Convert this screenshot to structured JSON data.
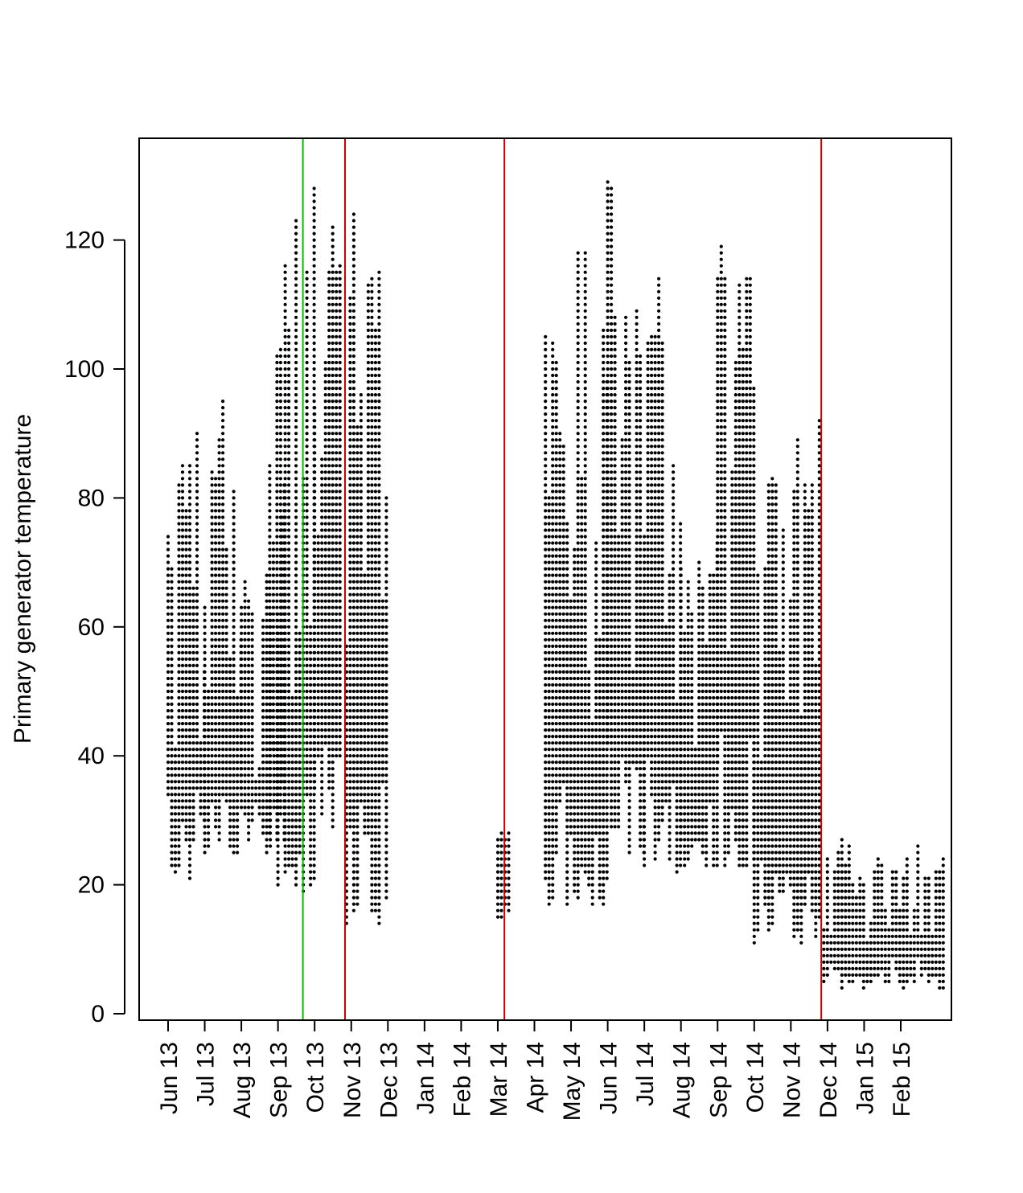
{
  "chart_data": {
    "type": "scatter",
    "title": "",
    "xlabel": "",
    "ylabel": "Primary generator temperature",
    "ylim": [
      0,
      136
    ],
    "y_ticks": [
      0,
      20,
      40,
      60,
      80,
      100,
      120
    ],
    "x_tick_labels": [
      "Jun 13",
      "Jul 13",
      "Aug 13",
      "Sep 13",
      "Oct 13",
      "Nov 13",
      "Dec 13",
      "Jan 14",
      "Feb 14",
      "Mar 14",
      "Apr 14",
      "May 14",
      "Jun 14",
      "Jul 14",
      "Aug 14",
      "Sep 14",
      "Oct 14",
      "Nov 14",
      "Dec 14",
      "Jan 15",
      "Feb 15"
    ],
    "grid": false,
    "legend": "none",
    "marker_color": "#000000",
    "reference_lines": [
      {
        "label": "Sep 13",
        "offset_months": 0.68,
        "color": "#00c000"
      },
      {
        "label": "Oct 13",
        "offset_months": 0.83,
        "color": "#cc0000"
      },
      {
        "label": "Mar 14",
        "offset_months": 0.18,
        "color": "#cc0000"
      },
      {
        "label": "Nov 14",
        "offset_months": 0.83,
        "color": "#cc0000"
      }
    ],
    "series_ranges": [
      {
        "name": "readings",
        "segments": [
          {
            "start": "2013-06-01",
            "end": "2013-06-30",
            "y_min": 19,
            "y_max": 95
          },
          {
            "start": "2013-07-01",
            "end": "2013-07-31",
            "y_min": 23,
            "y_max": 99
          },
          {
            "start": "2013-08-01",
            "end": "2013-08-31",
            "y_min": 24,
            "y_max": 69
          },
          {
            "start": "2013-08-25",
            "end": "2013-09-08",
            "y_min": 24,
            "y_max": 120
          },
          {
            "start": "2013-09-01",
            "end": "2013-09-30",
            "y_min": 17,
            "y_max": 131
          },
          {
            "start": "2013-10-01",
            "end": "2013-10-24",
            "y_min": 21,
            "y_max": 130
          },
          {
            "start": "2013-10-28",
            "end": "2013-11-30",
            "y_min": 12,
            "y_max": 130
          },
          {
            "start": "2014-03-01",
            "end": "2014-03-10",
            "y_min": 15,
            "y_max": 30
          },
          {
            "start": "2014-04-10",
            "end": "2014-05-31",
            "y_min": 15,
            "y_max": 119
          },
          {
            "start": "2014-06-01",
            "end": "2014-06-30",
            "y_min": 23,
            "y_max": 130
          },
          {
            "start": "2014-07-01",
            "end": "2014-07-31",
            "y_min": 20,
            "y_max": 118
          },
          {
            "start": "2014-08-01",
            "end": "2014-08-31",
            "y_min": 22,
            "y_max": 76
          },
          {
            "start": "2014-09-01",
            "end": "2014-09-30",
            "y_min": 21,
            "y_max": 127
          },
          {
            "start": "2014-10-01",
            "end": "2014-11-24",
            "y_min": 9,
            "y_max": 93
          },
          {
            "start": "2014-11-28",
            "end": "2015-03-05",
            "y_min": 4,
            "y_max": 27
          }
        ]
      }
    ]
  }
}
